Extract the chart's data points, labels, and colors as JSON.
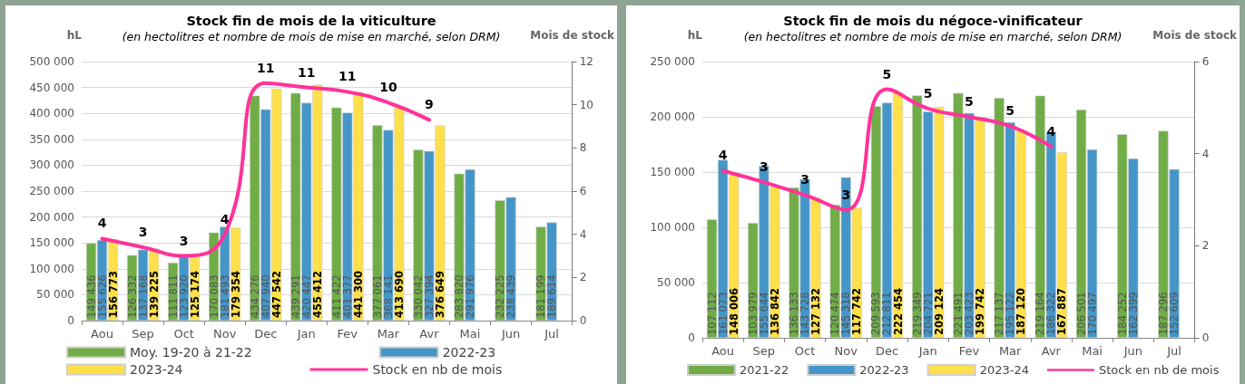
{
  "chart_data": [
    {
      "type": "bar",
      "title": "Stock fin de mois de la viticulture",
      "subtitle": "(en hectolitres et nombre de mois de mise en marché, selon DRM)",
      "ylabel": "hL",
      "y2label": "Mois de stock",
      "categories": [
        "Aou",
        "Sep",
        "Oct",
        "Nov",
        "Dec",
        "Jan",
        "Fev",
        "Mar",
        "Avr",
        "Mai",
        "Jun",
        "Jul"
      ],
      "series": [
        {
          "name": "Moy. 19-20 à 21-22",
          "color": "#70ad47",
          "values": [
            149436,
            126332,
            111811,
            170083,
            434276,
            439291,
            411422,
            377061,
            330042,
            283820,
            232225,
            181199
          ]
        },
        {
          "name": "2022-23",
          "color": "#4596c8",
          "values": [
            155626,
            137168,
            123920,
            181493,
            407940,
            420447,
            401377,
            368141,
            327394,
            291976,
            238439,
            189614
          ]
        },
        {
          "name": "2023-24",
          "color": "#ffe04b",
          "values": [
            156773,
            139225,
            125174,
            179354,
            447542,
            455412,
            441300,
            413690,
            376649,
            null,
            null,
            null
          ]
        },
        {
          "name": "Stock en nb de mois",
          "type": "line",
          "axis": "y2",
          "color": "#ff3399",
          "values": [
            3.8,
            3.4,
            3.0,
            4.0,
            11.0,
            10.8,
            10.6,
            10.1,
            9.3,
            null,
            null,
            null
          ],
          "value_labels": [
            "4",
            "3",
            "3",
            "4",
            "11",
            "11",
            "11",
            "10",
            "9",
            null,
            null,
            null
          ]
        }
      ],
      "ylim": [
        0,
        500000
      ],
      "yticks": [
        0,
        {
          "value": 50000,
          "label": "50 000"
        },
        {
          "value": 100000,
          "label": "100 000"
        },
        {
          "value": 150000,
          "label": "150 000"
        },
        {
          "value": 200000,
          "label": "200 000"
        },
        {
          "value": 250000,
          "label": "250 000"
        },
        {
          "value": 300000,
          "label": "300 000"
        },
        {
          "value": 350000,
          "label": "350 000"
        },
        {
          "value": 400000,
          "label": "400 000"
        },
        {
          "value": 450000,
          "label": "450 000"
        },
        {
          "value": 500000,
          "label": "500 000"
        }
      ],
      "y2lim": [
        0,
        12
      ],
      "y2ticks": [
        0,
        2,
        4,
        6,
        8,
        10,
        12
      ],
      "grid": "y",
      "legend": "bottom",
      "data_labels": true,
      "marker": "none",
      "line_style": "solid"
    },
    {
      "type": "bar",
      "title": "Stock fin de mois du négoce-vinificateur",
      "subtitle": "(en hectolitres et nombre de mois de mise en marché, selon DRM)",
      "ylabel": "hL",
      "y2label": "Mois de stock",
      "categories": [
        "Aou",
        "Sep",
        "Oct",
        "Nov",
        "Dec",
        "Jan",
        "Fev",
        "Mar",
        "Avr",
        "Mai",
        "Jun",
        "Jul"
      ],
      "series": [
        {
          "name": "2021-22",
          "color": "#70ad47",
          "values": [
            107112,
            103979,
            136133,
            120474,
            209593,
            219349,
            221491,
            217137,
            219164,
            206501,
            184252,
            187296
          ]
        },
        {
          "name": "2022-23",
          "color": "#4596c8",
          "values": [
            161073,
            155644,
            143728,
            145318,
            212811,
            204721,
            203423,
            195122,
            186322,
            170497,
            162399,
            152609
          ]
        },
        {
          "name": "2023-24",
          "color": "#ffe04b",
          "values": [
            148006,
            136842,
            127132,
            117742,
            222454,
            209124,
            199742,
            187120,
            167887,
            null,
            null,
            null
          ]
        },
        {
          "name": "Stock en nb de mois",
          "type": "line",
          "axis": "y2",
          "color": "#ff3399",
          "values": [
            3.63,
            3.38,
            3.1,
            2.78,
            5.4,
            4.98,
            4.8,
            4.6,
            4.15,
            null,
            null,
            null
          ],
          "value_labels": [
            "4",
            "3",
            "3",
            "3",
            "5",
            "5",
            "5",
            "5",
            "4",
            null,
            null,
            null
          ]
        }
      ],
      "ylim": [
        0,
        250000
      ],
      "yticks": [
        0,
        {
          "value": 50000,
          "label": "50 000"
        },
        {
          "value": 100000,
          "label": "100 000"
        },
        {
          "value": 150000,
          "label": "150 000"
        },
        {
          "value": 200000,
          "label": "200 000"
        },
        {
          "value": 250000,
          "label": "250 000"
        }
      ],
      "y2lim": [
        0,
        6
      ],
      "y2ticks": [
        0,
        2,
        4,
        6
      ],
      "grid": "y",
      "legend": "bottom",
      "data_labels": true,
      "marker": "none",
      "line_style": "solid"
    }
  ]
}
